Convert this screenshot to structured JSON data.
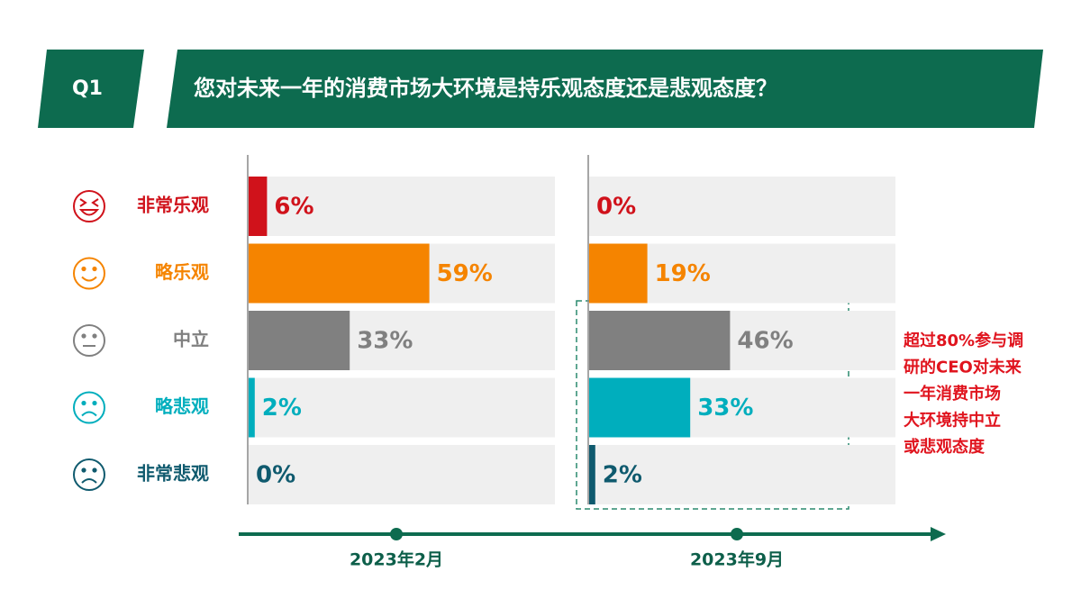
{
  "header": {
    "label": "Q1",
    "title": "您对未来一年的消费市场大环境是持乐观态度还是悲观态度？"
  },
  "chart_data": {
    "type": "bar",
    "orientation": "horizontal",
    "categories": [
      "非常乐观",
      "略乐观",
      "中立",
      "略悲观",
      "非常悲观"
    ],
    "colors": [
      "#d0121b",
      "#f58400",
      "#808080",
      "#00aebd",
      "#0f5a6e"
    ],
    "xlim": [
      0,
      100
    ],
    "series": [
      {
        "name": "2023年2月",
        "values": [
          6,
          59,
          33,
          2,
          0
        ],
        "value_labels": [
          "6%",
          "59%",
          "33%",
          "2%",
          "0%"
        ]
      },
      {
        "name": "2023年9月",
        "values": [
          0,
          19,
          46,
          33,
          2
        ],
        "value_labels": [
          "0%",
          "19%",
          "46%",
          "33%",
          "2%"
        ]
      }
    ],
    "annotation": [
      "超过80%参与调",
      "研的CEO对未来",
      "一年消费市场",
      "大环境持中立",
      "或悲观态度"
    ]
  }
}
